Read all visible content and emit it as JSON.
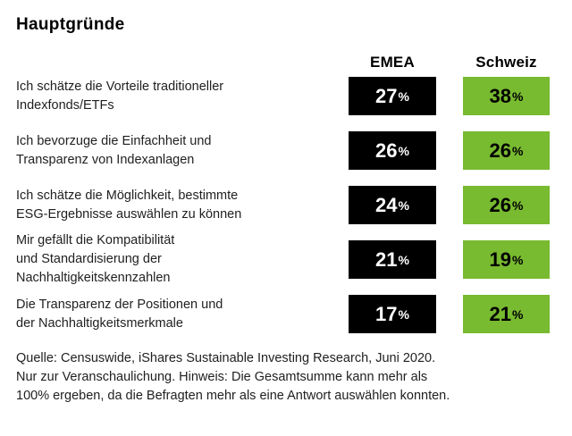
{
  "title": "Hauptgründe",
  "columns": {
    "emea": "EMEA",
    "schweiz": "Schweiz"
  },
  "chart_data": {
    "type": "table",
    "title": "Hauptgründe",
    "categories": [
      "Ich schätze die Vorteile traditioneller Indexfonds/ETFs",
      "Ich bevorzuge die Einfachheit und Transparenz von Indexanlagen",
      "Ich schätze die Möglichkeit, bestimmte ESG-Ergebnisse auswählen zu können",
      "Mir gefällt die Kompatibilität und Standardisierung der Nachhaltigkeitskennzahlen",
      "Die Transparenz der Positionen und der Nachhaltigkeitsmerkmale"
    ],
    "series": [
      {
        "name": "EMEA",
        "values": [
          27,
          26,
          24,
          21,
          17
        ]
      },
      {
        "name": "Schweiz",
        "values": [
          38,
          26,
          26,
          19,
          21
        ]
      }
    ],
    "unit": "%",
    "colors": {
      "emea_box": "#000000",
      "emea_text": "#ffffff",
      "schweiz_box": "#78BA30",
      "schweiz_text": "#000000",
      "background": "#ffffff"
    },
    "legend_position": "top",
    "grid": false
  },
  "rows": [
    {
      "label": "Ich schätze die Vorteile traditioneller\nIndexfonds/ETFs"
    },
    {
      "label": "Ich bevorzuge die Einfachheit und\nTransparenz von Indexanlagen"
    },
    {
      "label": "Ich schätze die Möglichkeit, bestimmte\nESG-Ergebnisse auswählen zu können"
    },
    {
      "label": "Mir gefällt die Kompatibilität\nund Standardisierung der\nNachhaltigkeitskennzahlen"
    },
    {
      "label": "Die Transparenz der Positionen und\nder Nachhaltigkeitsmerkmale"
    }
  ],
  "footnote": "Quelle: Censuswide, iShares Sustainable Investing Research, Juni 2020.\nNur zur Veranschaulichung. Hinweis: Die Gesamtsumme kann mehr als\n100% ergeben, da die Befragten mehr als eine Antwort auswählen konnten."
}
